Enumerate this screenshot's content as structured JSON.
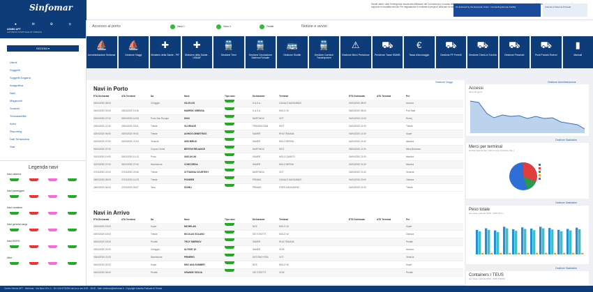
{
  "header": {
    "logo": "Sinfomar",
    "notice_text": "Gentili utenti, vista l'emergenza dovuta alla diffusione del Coronavirus e a causa delle misure intraprese per contenere la diffusione del virus, si comunica che da lunedi 16 marzo il personale si occupera del supporto in modalita remota. Per segnalazioni e richieste si prega di utilizzare la mail come strumento di comunicazione.",
    "eu_badge": "Co-financed by the European Union - Connecting Europe Facility",
    "eu_badge2": "Autorita di Sistema Portuale"
  },
  "sidebar": {
    "user_name": "ADMIN APT",
    "user_sub": "AUTORITA' PORTUALE DI TRIESTE",
    "sections_button": "SEZIONI",
    "items": [
      "Utenti",
      "Soggetti",
      "Soggetti Dogana",
      "Anagrafica",
      "Navi",
      "Magazzini",
      "Scarichi",
      "Trenosatellite",
      "Arrivi",
      "Reporting",
      "Dati Terrazzana",
      "Stat"
    ],
    "legend_title": "Legenda navi",
    "legend_rows": [
      "Navi cisterna",
      "Navi passeggeri",
      "Navi container",
      "Navi general cargo",
      "Navi RORO",
      "Altre"
    ]
  },
  "topbar": {
    "accesso_label": "Accesso al porto",
    "gates": [
      "Varco 1",
      "Varco 4",
      "Ferretti"
    ],
    "notizie_label": "Notizie e avvisi"
  },
  "tiles": [
    {
      "icon": "ship-icon",
      "label": "Amministrazione Sinfomar"
    },
    {
      "icon": "ship-icon",
      "label": "Gestione Viaggi"
    },
    {
      "icon": "cross-icon",
      "label": "Ministero della Salute - PIF"
    },
    {
      "icon": "cross-icon",
      "label": "Ministero della Salute - USMAF"
    },
    {
      "icon": "train-icon",
      "label": "Gestione Treni"
    },
    {
      "icon": "train-icon",
      "label": "Gestione Circolazione Sistema Portuale"
    },
    {
      "icon": "bus-icon",
      "label": "Gestione Shuttle"
    },
    {
      "icon": "train-icon",
      "label": "Gestione Corridoi/ Transhipment"
    },
    {
      "icon": "warning-icon",
      "label": "Gestione Merci Pericolose"
    },
    {
      "icon": "truck-icon",
      "label": "Pendenze Tasse SB/MB"
    },
    {
      "icon": "euro-icon",
      "label": "Tassa d'ancoraggio"
    },
    {
      "icon": "truck-icon",
      "label": "Gestione PF Ferretti"
    },
    {
      "icon": "truck-icon",
      "label": "Gestione Check-in Turchia"
    },
    {
      "icon": "truck-icon",
      "label": "Gestione Preavvisi"
    },
    {
      "icon": "truck-icon",
      "label": "Punti Franchi Esterni"
    },
    {
      "icon": "book-icon",
      "label": "Manuali"
    }
  ],
  "main": {
    "gestione_viaggi_link": "Gestione Viaggi",
    "in_porto_title": "Navi in Porto",
    "in_arrivo_title": "Navi in Arrivo",
    "columns_porto": [
      "ETA Dichiarata",
      "ATA Terminal",
      "Da",
      "Nave",
      "Tipo nave",
      "Dichiarante",
      "Terminal",
      "ETD Dichiarata",
      "ATD Terminal",
      "Per"
    ],
    "columns_arrivo": [
      "ETA Dichiarata",
      "ATA Terminal",
      "Da",
      "Nave",
      "Tipo nave",
      "Dichiarante",
      "Terminal",
      "ETD Dichiarata",
      "ATD Terminal",
      "Per"
    ],
    "rows_porto": [
      [
        "03/04/2020 08:00",
        "",
        "Chioggia",
        "IVA ELVIO",
        "",
        "S.A.S.A.",
        "CANALE NAVIGABILE",
        "04/04/2020 08:00",
        "",
        "Ancona"
      ],
      [
        "04/04/2020 02:00",
        "03/04/2020 19:36",
        "",
        "MAERSK SIRENSA",
        "",
        "S.A.S.A.",
        "MOLO VII",
        "05/04/2020 08:00",
        "",
        "Port Said"
      ],
      [
        "02/04/2020 07:00",
        "03/04/2020 14:06",
        "Porto San Rocque",
        "DINO",
        "",
        "MARTINOLI",
        "OCT",
        "04/04/2020 12:00",
        "",
        "Rovinj"
      ],
      [
        "03/04/2020 21:30",
        "03/04/2020 18:51",
        "Trieste",
        "GLORIAGE",
        "",
        "TRANSOCEAN",
        "SIOT",
        "04/04/2020 21:00",
        "",
        "Trieste"
      ],
      [
        "02/04/2020 06:00",
        "03/04/2020 09:31",
        "Trieste",
        "AGHIOS DEMETRIOS",
        "",
        "SAMER",
        "RIVA TRAIANA",
        "04/04/2020 21:00",
        "",
        "Koper"
      ],
      [
        "02/04/2020 07:00",
        "02/04/2020 21:53",
        "Venezia",
        "UND BIRLIK",
        "",
        "SAMER",
        "MOLO BERSA",
        "04/04/2020 21:00",
        "",
        "Istanbul"
      ],
      [
        "03/04/2020 07:00",
        "",
        "Corpus Christi",
        "BRITISH RELIANCE",
        "",
        "MARTINOLI",
        "SIOT",
        "05/04/2020 21:00",
        "",
        "Mina Mohamm."
      ],
      [
        "31/03/2020 19:00",
        "30/03/2020 10:13",
        "Porto",
        "UND AYLIN",
        "",
        "SAMER",
        "MOLO QUINTO",
        "04/04/2020 21:00",
        "",
        "Istanbul"
      ],
      [
        "31/03/2020 07:00",
        "30/03/2020 07:40",
        "Monfalcone",
        "CONCORDIA",
        "",
        "SAMER",
        "MOLO BERSA",
        "04/04/2020 21:00",
        "",
        "Istanbul"
      ],
      [
        "27/03/2020 22:00",
        "27/03/2020 20:56",
        "Trieste",
        "CITTADINA COURTESY",
        "",
        "MARTINOLI",
        "OCT",
        "03/04/2020 21:00",
        "",
        "Venezia"
      ],
      [
        "28/03/2020 08:00",
        "27/03/2020 14:28",
        "Trieste",
        "PIONEER",
        "",
        "PRIMAS",
        "CANALE NAVIGABILE",
        "04/04/2020 20:00",
        "",
        "Ostrava"
      ],
      [
        "26/03/2020 06:00",
        "27/03/2020 09:07",
        "Taxa",
        "SOHN I",
        "",
        "PRIMAS",
        "FORO MAGAZZINO",
        "04/04/2020 21:00",
        "",
        "Trieste"
      ]
    ],
    "rows_arrivo": [
      [
        "03/04/2020 15:00",
        "",
        "Koper",
        "MICHELAN",
        "",
        "NCE",
        "MOLO VII",
        "",
        "",
        "Koper"
      ],
      [
        "03/04/2020 18:00",
        "",
        "Trieste",
        "NICOLAS SOLANO",
        "",
        "GB TOSOTTI",
        "MOLO VII",
        "",
        "",
        "Ostrava"
      ],
      [
        "03/04/2020 18:00",
        "",
        "Pendik",
        "TROY SMIRNOV",
        "",
        "SAMER",
        "RIVA TRAIANA",
        "",
        "",
        "Pendik"
      ],
      [
        "03/04/2020 20:00",
        "",
        "Chioggia",
        "ULYSSE 16",
        "",
        "SAMER",
        "OCM",
        "",
        "",
        "Ancona"
      ],
      [
        "03/04/2020 21:00",
        "",
        "Monfalcone",
        "PRIMERO",
        "",
        "ANTONIO RISA",
        "OCT",
        "",
        "",
        "Venezia"
      ],
      [
        "04/04/2020 02:00",
        "",
        "Koper",
        "MSC ANA SUMMER",
        "",
        "NCE",
        "MOLO VII",
        "",
        "",
        "Koper"
      ],
      [
        "04/04/2020 06:00",
        "",
        "Pendik",
        "GRANDE SICILIA",
        "",
        "GB TOSOTTI",
        "OCM",
        "",
        "",
        "Pendik"
      ]
    ]
  },
  "right": {
    "gestione_amm_link": "Gestione Amministrazione",
    "accessi_title": "Accessi",
    "accessi_sub": "ultimi 30 giorni",
    "stat_link": "Gestione Statistiche",
    "merci_title": "Merci per terminal",
    "merci_sub": "periodo selezionato: ultimo mese concluso (Ton.)",
    "peso_title": "Peso totale",
    "peso_sub": "per mese, periodo 2019 - 2020 (Ton.)",
    "containers_title": "Containers / TEUS",
    "containers_sub": "per mese, periodo 2019 - 2020 (TEUS)"
  },
  "footer": {
    "text": "Centro Servizi APT - Sinfomar - Via Molo VII n.1 - Tel. 040 6732206 da lun a ven 8:00 - 18:00 - Mail: sinfomar@sinfomar.it - Copyright Autorita Portuale di Trieste"
  },
  "colors": {
    "brand": "#0e3c78",
    "accent": "#2bb62b",
    "link": "#1b5fb0",
    "chart_blue": "#2090d8"
  }
}
